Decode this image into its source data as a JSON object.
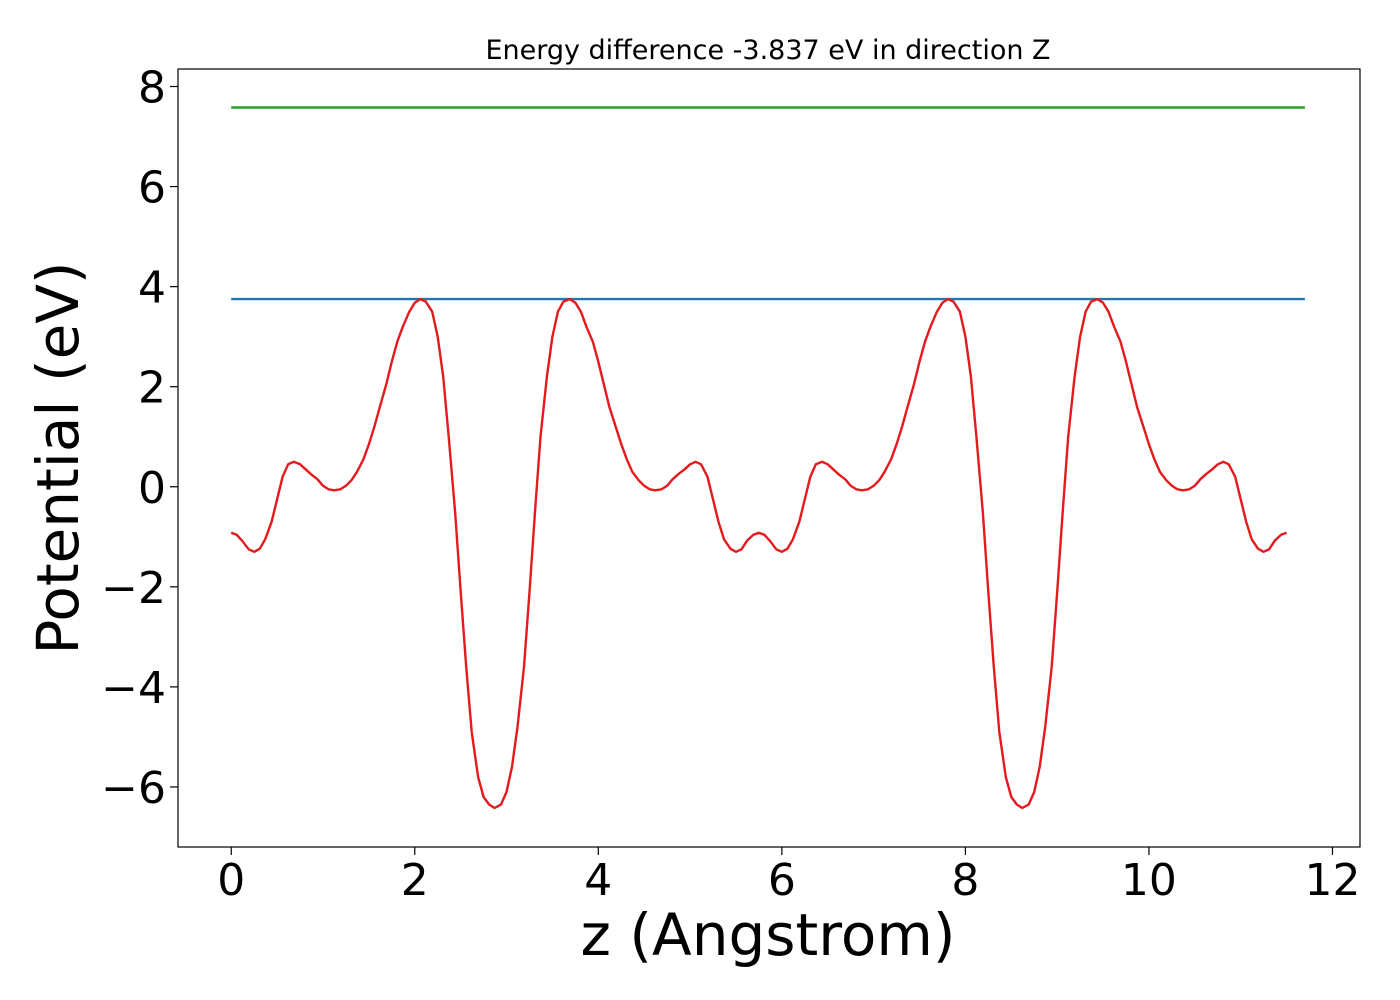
{
  "chart_data": {
    "type": "line",
    "title": "Energy difference -3.837 eV in direction Z",
    "xlabel": "z (Angstrom)",
    "ylabel": "Potential (eV)",
    "xlim": [
      -0.58,
      12.3
    ],
    "ylim": [
      -7.2,
      8.35
    ],
    "xticks": [
      0,
      2,
      4,
      6,
      8,
      10,
      12
    ],
    "yticks": [
      -6,
      -4,
      -2,
      0,
      2,
      4,
      6,
      8
    ],
    "xtick_labels": [
      "0",
      "2",
      "4",
      "6",
      "8",
      "10",
      "12"
    ],
    "ytick_labels": [
      "−6",
      "−4",
      "−2",
      "0",
      "2",
      "4",
      "6",
      "8"
    ],
    "grid": false,
    "legend": "none",
    "series": [
      {
        "color": "#2ca02c",
        "points": [
          [
            0,
            7.58
          ],
          [
            11.7,
            7.58
          ]
        ]
      },
      {
        "color": "#1f77b4",
        "points": [
          [
            0,
            3.75
          ],
          [
            11.7,
            3.75
          ]
        ]
      },
      {
        "color": "#e41a1c",
        "points": [
          [
            0.0,
            -0.92
          ],
          [
            0.06,
            -0.96
          ],
          [
            0.12,
            -1.08
          ],
          [
            0.19,
            -1.25
          ],
          [
            0.25,
            -1.3
          ],
          [
            0.31,
            -1.24
          ],
          [
            0.37,
            -1.05
          ],
          [
            0.44,
            -0.7
          ],
          [
            0.5,
            -0.25
          ],
          [
            0.56,
            0.2
          ],
          [
            0.62,
            0.45
          ],
          [
            0.68,
            0.5
          ],
          [
            0.75,
            0.45
          ],
          [
            0.81,
            0.35
          ],
          [
            0.87,
            0.25
          ],
          [
            0.94,
            0.15
          ],
          [
            1.0,
            0.02
          ],
          [
            1.06,
            -0.05
          ],
          [
            1.12,
            -0.07
          ],
          [
            1.19,
            -0.05
          ],
          [
            1.25,
            0.02
          ],
          [
            1.31,
            0.13
          ],
          [
            1.37,
            0.3
          ],
          [
            1.44,
            0.55
          ],
          [
            1.5,
            0.85
          ],
          [
            1.56,
            1.2
          ],
          [
            1.62,
            1.6
          ],
          [
            1.69,
            2.05
          ],
          [
            1.75,
            2.5
          ],
          [
            1.81,
            2.9
          ],
          [
            1.87,
            3.2
          ],
          [
            1.94,
            3.5
          ],
          [
            2.0,
            3.68
          ],
          [
            2.06,
            3.75
          ],
          [
            2.12,
            3.7
          ],
          [
            2.19,
            3.5
          ],
          [
            2.25,
            3.0
          ],
          [
            2.31,
            2.2
          ],
          [
            2.37,
            1.0
          ],
          [
            2.44,
            -0.5
          ],
          [
            2.5,
            -2.1
          ],
          [
            2.56,
            -3.6
          ],
          [
            2.62,
            -4.9
          ],
          [
            2.69,
            -5.8
          ],
          [
            2.75,
            -6.2
          ],
          [
            2.81,
            -6.35
          ],
          [
            2.87,
            -6.42
          ],
          [
            2.94,
            -6.35
          ],
          [
            3.0,
            -6.1
          ],
          [
            3.06,
            -5.6
          ],
          [
            3.12,
            -4.8
          ],
          [
            3.19,
            -3.6
          ],
          [
            3.25,
            -2.1
          ],
          [
            3.31,
            -0.5
          ],
          [
            3.37,
            1.0
          ],
          [
            3.44,
            2.2
          ],
          [
            3.5,
            3.0
          ],
          [
            3.56,
            3.5
          ],
          [
            3.62,
            3.7
          ],
          [
            3.69,
            3.75
          ],
          [
            3.75,
            3.68
          ],
          [
            3.81,
            3.5
          ],
          [
            3.87,
            3.2
          ],
          [
            3.94,
            2.9
          ],
          [
            4.0,
            2.5
          ],
          [
            4.06,
            2.05
          ],
          [
            4.12,
            1.6
          ],
          [
            4.19,
            1.2
          ],
          [
            4.25,
            0.85
          ],
          [
            4.31,
            0.55
          ],
          [
            4.37,
            0.3
          ],
          [
            4.44,
            0.13
          ],
          [
            4.5,
            0.02
          ],
          [
            4.56,
            -0.05
          ],
          [
            4.62,
            -0.07
          ],
          [
            4.69,
            -0.05
          ],
          [
            4.75,
            0.02
          ],
          [
            4.81,
            0.15
          ],
          [
            4.87,
            0.25
          ],
          [
            4.94,
            0.35
          ],
          [
            5.0,
            0.45
          ],
          [
            5.06,
            0.5
          ],
          [
            5.12,
            0.45
          ],
          [
            5.19,
            0.2
          ],
          [
            5.25,
            -0.25
          ],
          [
            5.31,
            -0.7
          ],
          [
            5.37,
            -1.05
          ],
          [
            5.44,
            -1.24
          ],
          [
            5.5,
            -1.3
          ],
          [
            5.56,
            -1.25
          ],
          [
            5.62,
            -1.08
          ],
          [
            5.69,
            -0.96
          ],
          [
            5.75,
            -0.92
          ],
          [
            5.81,
            -0.96
          ],
          [
            5.87,
            -1.08
          ],
          [
            5.94,
            -1.25
          ],
          [
            6.0,
            -1.3
          ],
          [
            6.06,
            -1.24
          ],
          [
            6.12,
            -1.05
          ],
          [
            6.19,
            -0.7
          ],
          [
            6.25,
            -0.25
          ],
          [
            6.31,
            0.2
          ],
          [
            6.37,
            0.45
          ],
          [
            6.44,
            0.5
          ],
          [
            6.5,
            0.45
          ],
          [
            6.56,
            0.35
          ],
          [
            6.62,
            0.25
          ],
          [
            6.69,
            0.15
          ],
          [
            6.75,
            0.02
          ],
          [
            6.81,
            -0.05
          ],
          [
            6.87,
            -0.07
          ],
          [
            6.94,
            -0.05
          ],
          [
            7.0,
            0.02
          ],
          [
            7.06,
            0.13
          ],
          [
            7.12,
            0.3
          ],
          [
            7.19,
            0.55
          ],
          [
            7.25,
            0.85
          ],
          [
            7.31,
            1.2
          ],
          [
            7.37,
            1.6
          ],
          [
            7.44,
            2.05
          ],
          [
            7.5,
            2.5
          ],
          [
            7.56,
            2.9
          ],
          [
            7.62,
            3.2
          ],
          [
            7.69,
            3.5
          ],
          [
            7.75,
            3.68
          ],
          [
            7.81,
            3.75
          ],
          [
            7.87,
            3.7
          ],
          [
            7.94,
            3.5
          ],
          [
            8.0,
            3.0
          ],
          [
            8.06,
            2.2
          ],
          [
            8.12,
            1.0
          ],
          [
            8.19,
            -0.5
          ],
          [
            8.25,
            -2.1
          ],
          [
            8.31,
            -3.6
          ],
          [
            8.37,
            -4.9
          ],
          [
            8.44,
            -5.8
          ],
          [
            8.5,
            -6.2
          ],
          [
            8.56,
            -6.35
          ],
          [
            8.62,
            -6.42
          ],
          [
            8.69,
            -6.35
          ],
          [
            8.75,
            -6.1
          ],
          [
            8.81,
            -5.6
          ],
          [
            8.87,
            -4.8
          ],
          [
            8.94,
            -3.6
          ],
          [
            9.0,
            -2.1
          ],
          [
            9.06,
            -0.5
          ],
          [
            9.12,
            1.0
          ],
          [
            9.19,
            2.2
          ],
          [
            9.25,
            3.0
          ],
          [
            9.31,
            3.5
          ],
          [
            9.37,
            3.7
          ],
          [
            9.44,
            3.75
          ],
          [
            9.5,
            3.68
          ],
          [
            9.56,
            3.5
          ],
          [
            9.62,
            3.2
          ],
          [
            9.69,
            2.9
          ],
          [
            9.75,
            2.5
          ],
          [
            9.81,
            2.05
          ],
          [
            9.87,
            1.6
          ],
          [
            9.94,
            1.2
          ],
          [
            10.0,
            0.85
          ],
          [
            10.06,
            0.55
          ],
          [
            10.12,
            0.3
          ],
          [
            10.19,
            0.13
          ],
          [
            10.25,
            0.02
          ],
          [
            10.31,
            -0.05
          ],
          [
            10.37,
            -0.07
          ],
          [
            10.44,
            -0.05
          ],
          [
            10.5,
            0.02
          ],
          [
            10.56,
            0.15
          ],
          [
            10.62,
            0.25
          ],
          [
            10.69,
            0.35
          ],
          [
            10.75,
            0.45
          ],
          [
            10.81,
            0.5
          ],
          [
            10.87,
            0.45
          ],
          [
            10.94,
            0.2
          ],
          [
            11.0,
            -0.25
          ],
          [
            11.06,
            -0.7
          ],
          [
            11.12,
            -1.05
          ],
          [
            11.19,
            -1.24
          ],
          [
            11.25,
            -1.3
          ],
          [
            11.31,
            -1.25
          ],
          [
            11.37,
            -1.08
          ],
          [
            11.44,
            -0.96
          ],
          [
            11.5,
            -0.92
          ]
        ]
      }
    ]
  }
}
